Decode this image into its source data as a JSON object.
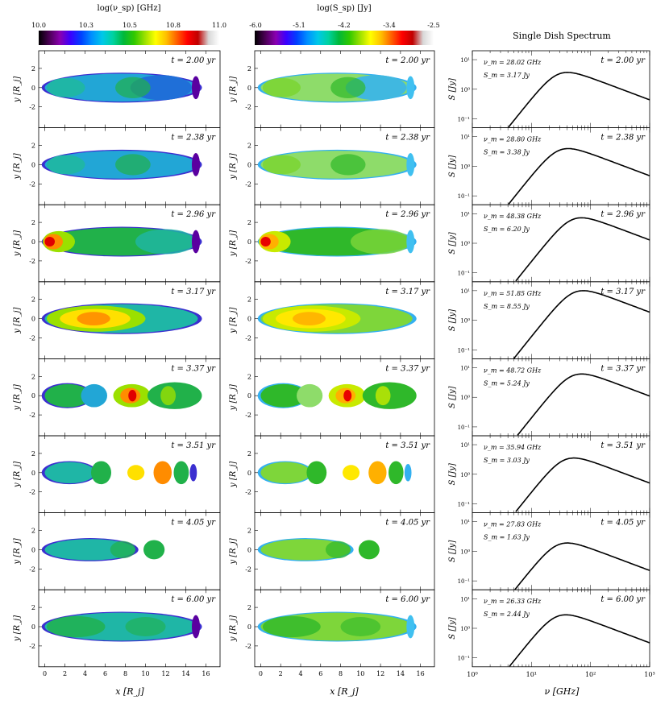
{
  "figure": {
    "left_colorbar_title": "log(ν_sp) [GHz]",
    "left_colorbar_ticks": [
      "10.0",
      "10.3",
      "10.5",
      "10.8",
      "11.0"
    ],
    "mid_colorbar_title": "log(S_sp) [Jy]",
    "mid_colorbar_ticks": [
      "-6.0",
      "-5.1",
      "-4.2",
      "-3.4",
      "-2.5"
    ],
    "spectrum_title": "Single Dish Spectrum",
    "map_xlabel": "x [R_j]",
    "map_ylabel": "y [R_j]",
    "spec_xlabel": "ν [GHz]",
    "spec_ylabel": "S [Jy]",
    "map_xticks": [
      "0",
      "2",
      "4",
      "6",
      "8",
      "10",
      "12",
      "14",
      "16"
    ],
    "map_yticks": [
      "2",
      "0",
      "-2"
    ],
    "spec_xticks": [
      "10⁰",
      "10¹",
      "10²",
      "10³"
    ],
    "spec_yticks": [
      "10¹",
      "10⁰",
      "10⁻¹"
    ],
    "colors": {
      "turbo": [
        "#000000",
        "#4b0055",
        "#8a00b0",
        "#3a00ff",
        "#0040ff",
        "#0090ff",
        "#00c8e8",
        "#00d2a0",
        "#00b83a",
        "#30c800",
        "#9be000",
        "#ffff00",
        "#ffc000",
        "#ff6000",
        "#ff0000",
        "#c00000",
        "#d8d8d8",
        "#ffffff"
      ]
    }
  },
  "chart_data": [
    {
      "type": "heatmap",
      "panel": "left",
      "time_label": "t = 2.00 yr",
      "value_label": "log frequency map",
      "t": 2.0
    },
    {
      "type": "heatmap",
      "panel": "middle",
      "time_label": "t = 2.00 yr",
      "value_label": "log flux map",
      "t": 2.0
    },
    {
      "type": "line",
      "panel": "right",
      "time_label": "t = 2.00 yr",
      "nu_label": "ν_m = 28.02 GHz",
      "s_label": "S_m = 3.17 Jy",
      "nu_m": 28.02,
      "s_m": 3.17,
      "xlim": [
        1,
        1000
      ],
      "ylim": [
        0.05,
        20
      ]
    },
    {
      "type": "heatmap",
      "panel": "left",
      "time_label": "t = 2.38 yr",
      "t": 2.38
    },
    {
      "type": "heatmap",
      "panel": "middle",
      "time_label": "t = 2.38 yr",
      "t": 2.38
    },
    {
      "type": "line",
      "panel": "right",
      "time_label": "t = 2.38 yr",
      "nu_label": "ν_m = 28.80 GHz",
      "s_label": "S_m = 3.38 Jy",
      "nu_m": 28.8,
      "s_m": 3.38,
      "xlim": [
        1,
        1000
      ],
      "ylim": [
        0.05,
        20
      ]
    },
    {
      "type": "heatmap",
      "panel": "left",
      "time_label": "t = 2.96 yr",
      "t": 2.96
    },
    {
      "type": "heatmap",
      "panel": "middle",
      "time_label": "t = 2.96 yr",
      "t": 2.96
    },
    {
      "type": "line",
      "panel": "right",
      "time_label": "t = 2.96 yr",
      "nu_label": "ν_m = 48.38 GHz",
      "s_label": "S_m = 6.20 Jy",
      "nu_m": 48.38,
      "s_m": 6.2,
      "xlim": [
        1,
        1000
      ],
      "ylim": [
        0.05,
        20
      ]
    },
    {
      "type": "heatmap",
      "panel": "left",
      "time_label": "t = 3.17 yr",
      "t": 3.17
    },
    {
      "type": "heatmap",
      "panel": "middle",
      "time_label": "t = 3.17 yr",
      "t": 3.17
    },
    {
      "type": "line",
      "panel": "right",
      "time_label": "t = 3.17 yr",
      "nu_label": "ν_m = 51.85 GHz",
      "s_label": "S_m = 8.55 Jy",
      "nu_m": 51.85,
      "s_m": 8.55,
      "xlim": [
        1,
        1000
      ],
      "ylim": [
        0.05,
        20
      ]
    },
    {
      "type": "heatmap",
      "panel": "left",
      "time_label": "t = 3.37 yr",
      "t": 3.37
    },
    {
      "type": "heatmap",
      "panel": "middle",
      "time_label": "t = 3.37 yr",
      "t": 3.37
    },
    {
      "type": "line",
      "panel": "right",
      "time_label": "t = 3.37 yr",
      "nu_label": "ν_m = 48.72 GHz",
      "s_label": "S_m = 5.24 Jy",
      "nu_m": 48.72,
      "s_m": 5.24,
      "xlim": [
        1,
        1000
      ],
      "ylim": [
        0.05,
        20
      ]
    },
    {
      "type": "heatmap",
      "panel": "left",
      "time_label": "t = 3.51 yr",
      "t": 3.51
    },
    {
      "type": "heatmap",
      "panel": "middle",
      "time_label": "t = 3.51 yr",
      "t": 3.51
    },
    {
      "type": "line",
      "panel": "right",
      "time_label": "t = 3.51 yr",
      "nu_label": "ν_m = 35.94 GHz",
      "s_label": "S_m = 3.03 Jy",
      "nu_m": 35.94,
      "s_m": 3.03,
      "xlim": [
        1,
        1000
      ],
      "ylim": [
        0.05,
        20
      ]
    },
    {
      "type": "heatmap",
      "panel": "left",
      "time_label": "t = 4.05 yr",
      "t": 4.05
    },
    {
      "type": "heatmap",
      "panel": "middle",
      "time_label": "t = 4.05 yr",
      "t": 4.05
    },
    {
      "type": "line",
      "panel": "right",
      "time_label": "t = 4.05 yr",
      "nu_label": "ν_m = 27.83 GHz",
      "s_label": "S_m = 1.63 Jy",
      "nu_m": 27.83,
      "s_m": 1.63,
      "xlim": [
        1,
        1000
      ],
      "ylim": [
        0.05,
        20
      ]
    },
    {
      "type": "heatmap",
      "panel": "left",
      "time_label": "t = 6.00 yr",
      "t": 6.0
    },
    {
      "type": "heatmap",
      "panel": "middle",
      "time_label": "t = 6.00 yr",
      "t": 6.0
    },
    {
      "type": "line",
      "panel": "right",
      "time_label": "t = 6.00 yr",
      "nu_label": "ν_m = 26.33 GHz",
      "s_label": "S_m = 2.44 Jy",
      "nu_m": 26.33,
      "s_m": 2.44,
      "xlim": [
        1,
        1000
      ],
      "ylim": [
        0.05,
        20
      ]
    }
  ]
}
